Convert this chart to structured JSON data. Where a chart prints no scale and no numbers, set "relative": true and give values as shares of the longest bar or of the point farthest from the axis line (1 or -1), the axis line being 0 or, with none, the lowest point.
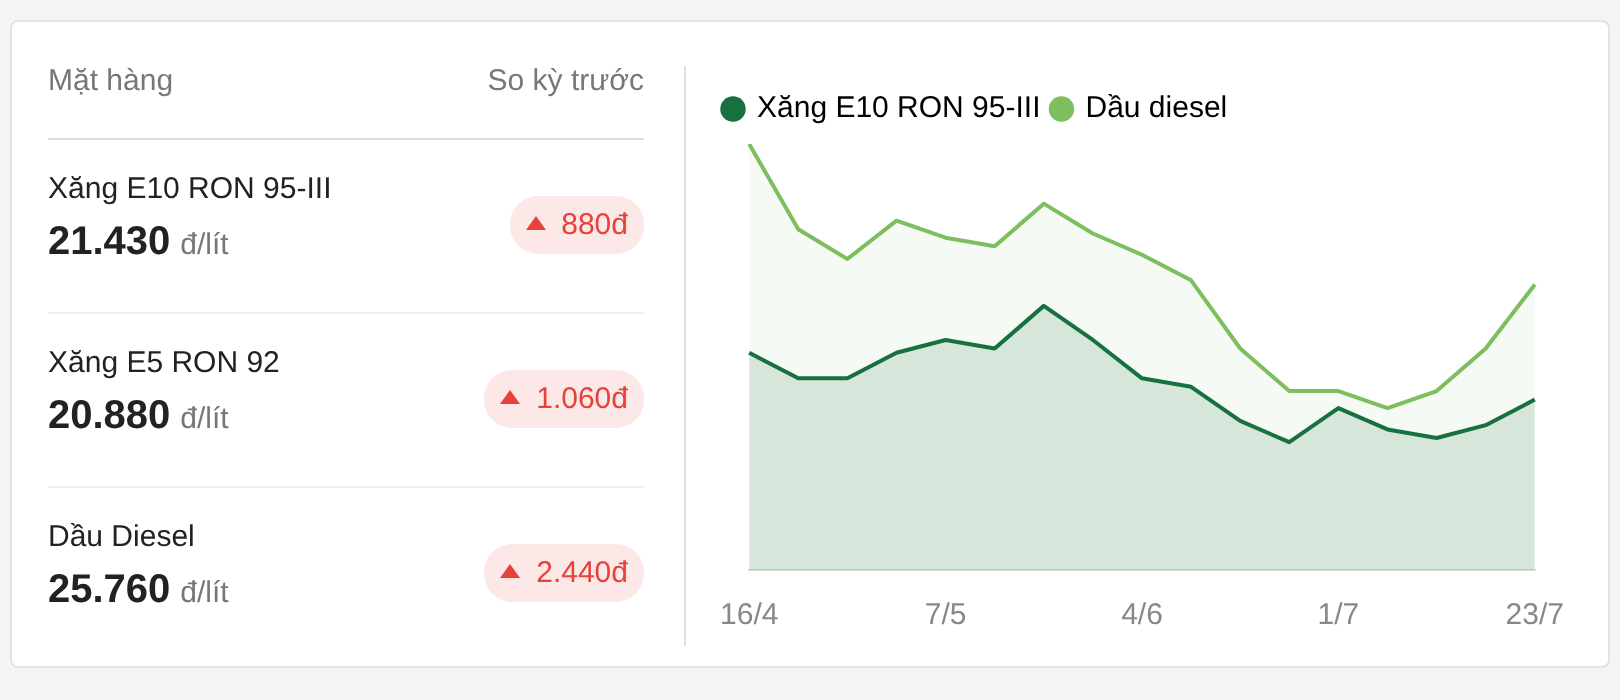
{
  "chart_data": [
    {
      "type": "other",
      "annotations": [
        "Mặt hàng",
        "So kỳ trước",
        "đ/lít"
      ],
      "categories": [
        "Xăng E10 RON 95-III",
        "Xăng E5 RON 92",
        "Dầu Diesel"
      ],
      "series": [
        {
          "color": "#222222",
          "values": [
            21430,
            20880,
            25760
          ],
          "value_labels": [
            "21.430",
            "20.880",
            "25.760"
          ]
        },
        {
          "color": "#e8403b",
          "values": [
            880,
            1060,
            2440
          ],
          "value_labels": [
            "880đ",
            "1.060đ",
            "2.440đ"
          ]
        }
      ]
    },
    {
      "type": "area",
      "relative": true,
      "legend": "top left",
      "marker": "none",
      "grid": false,
      "categories": [
        "16/4",
        null,
        null,
        null,
        "7/5",
        null,
        null,
        null,
        "4/6",
        null,
        null,
        null,
        "1/7",
        null,
        null,
        null,
        "23/7"
      ],
      "series": [
        {
          "name": "Xăng E10 RON 95-III",
          "color": "#17703f",
          "values": [
            0.51,
            0.45,
            0.45,
            0.51,
            0.54,
            0.52,
            0.62,
            0.54,
            0.45,
            0.43,
            0.35,
            0.3,
            0.38,
            0.33,
            0.31,
            0.34,
            0.4
          ]
        },
        {
          "name": "Dầu diesel",
          "color": "#7dbf5e",
          "values": [
            1,
            0.8,
            0.73,
            0.82,
            0.78,
            0.76,
            0.86,
            0.79,
            0.74,
            0.68,
            0.52,
            0.42,
            0.42,
            0.38,
            0.42,
            0.52,
            0.67
          ]
        }
      ]
    }
  ]
}
